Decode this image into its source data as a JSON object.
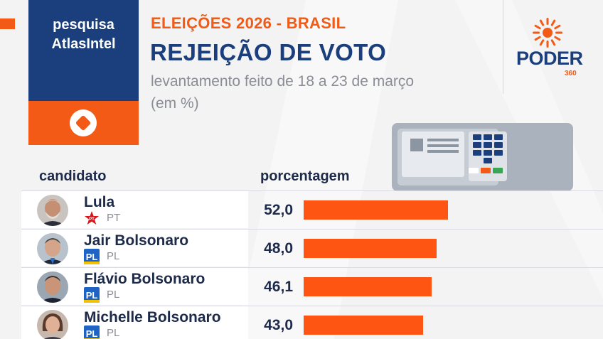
{
  "brand": {
    "line1": "pesquisa",
    "line2": "AtlasIntel"
  },
  "header": {
    "kicker": "ELEIÇÕES 2026 - BRASIL",
    "title": "REJEIÇÃO DE VOTO",
    "subtitle_line1": "levantamento feito de 18 a 23 de março",
    "subtitle_line2": "(em %)"
  },
  "publisher": {
    "name": "PODER",
    "number": "360"
  },
  "columns": {
    "candidate": "candidato",
    "percentage": "porcentagem"
  },
  "colors": {
    "accent": "#f25a16",
    "navy": "#1b3f7c",
    "bar": "#ff5512",
    "pt_red": "#d7141a",
    "pl_blue": "#1f64c4"
  },
  "chart_data": {
    "type": "bar",
    "orientation": "horizontal",
    "categories": [
      "Lula",
      "Jair Bolsonaro",
      "Flávio Bolsonaro",
      "Michelle Bolsonaro"
    ],
    "values": [
      52.0,
      48.0,
      46.1,
      43.0
    ],
    "value_labels": [
      "52,0",
      "48,0",
      "46,1",
      "43,0"
    ],
    "parties": [
      "PT",
      "PL",
      "PL",
      "PL"
    ],
    "party_icons": [
      "pt-star-icon",
      "pl-logo-icon",
      "pl-logo-icon",
      "pl-logo-icon"
    ],
    "xlim": [
      0,
      100
    ],
    "grid": false,
    "legend": "none"
  }
}
